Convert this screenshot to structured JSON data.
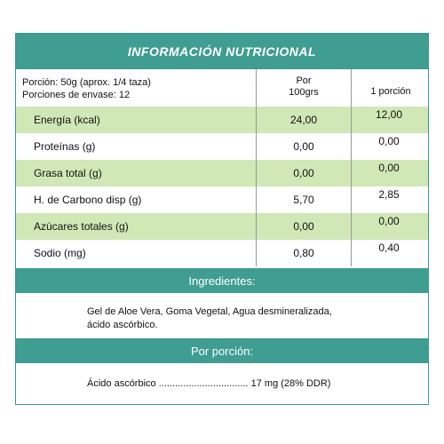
{
  "title": "INFORMACIÓN NUTRICIONAL",
  "serving": {
    "line1": "Porción: 50g (aprox. 1/4 taza)",
    "line2": "Porciones de envase: 12"
  },
  "columns": {
    "per100_line1": "Por",
    "per100_line2": "100grs",
    "per_portion": "1 porción"
  },
  "rows": [
    {
      "name": "Energía (kcal)",
      "per100": "24,00",
      "portion": "12,00"
    },
    {
      "name": "Proteínas (g)",
      "per100": "0,00",
      "portion": "0,00"
    },
    {
      "name": "Grasa total (g)",
      "per100": "0,00",
      "portion": "0,00"
    },
    {
      "name": "H. de Carbono disp (g)",
      "per100": "5,70",
      "portion": "2,85"
    },
    {
      "name": "Azúcares totales (g)",
      "per100": "0,00",
      "portion": "0,00"
    },
    {
      "name": "Sodio (mg)",
      "per100": "0,80",
      "portion": "0,40"
    }
  ],
  "ingredients": {
    "heading": "Ingredientes:",
    "line1": "Gel de Aloe Vera, Goma Vegetal, Agua desmineralizada,",
    "line2": "ácido ascórbico."
  },
  "per_portion": {
    "heading": "Por porción:",
    "line": "Ácido ascórbico ................................. 17 mg (28% DDR)"
  },
  "colors": {
    "teal": "#3f9d92",
    "light_green": "#cfe8b6"
  }
}
